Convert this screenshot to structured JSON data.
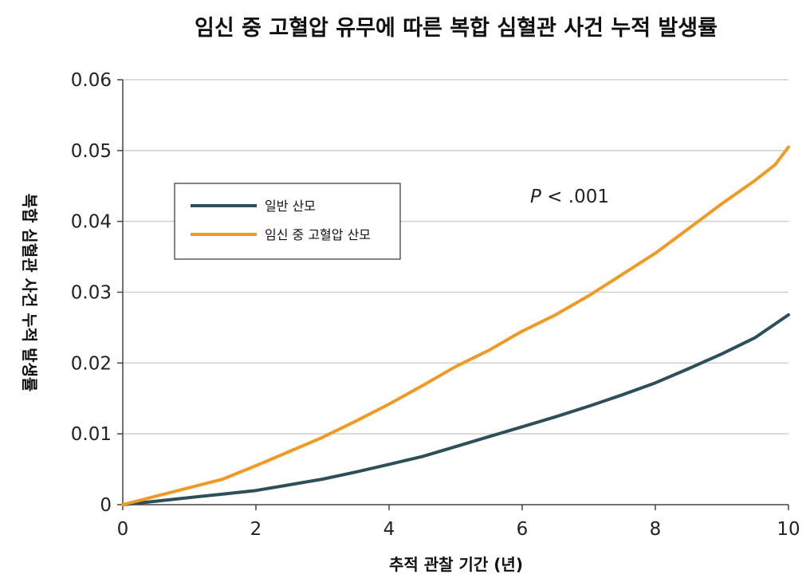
{
  "chart_data": {
    "type": "line",
    "title": "임신 중 고혈압 유무에 따른 복합 심혈관 사건 누적 발생률",
    "xlabel": "추적 관찰 기간 (년)",
    "ylabel": "복합 심혈관 사건 누적 발생률",
    "xlim": [
      0,
      10
    ],
    "ylim": [
      0,
      0.06
    ],
    "xticks": [
      0,
      2,
      4,
      6,
      8,
      10
    ],
    "xtick_labels": [
      "0",
      "2",
      "4",
      "6",
      "8",
      "10"
    ],
    "yticks": [
      0,
      0.01,
      0.02,
      0.03,
      0.04,
      0.05,
      0.06
    ],
    "ytick_labels": [
      "0",
      "0.01",
      "0.02",
      "0.03",
      "0.04",
      "0.05",
      "0.06"
    ],
    "grid": true,
    "legend_position": "upper-left",
    "annotation": {
      "italic": "P",
      "rest": " < .001"
    },
    "series": [
      {
        "name": "일반 산모",
        "color": "#2d4f59",
        "x": [
          0,
          0.5,
          1,
          1.5,
          2,
          2.5,
          3,
          3.5,
          4,
          4.5,
          5,
          5.5,
          6,
          6.5,
          7,
          7.5,
          8,
          8.5,
          9,
          9.5,
          10
        ],
        "y": [
          0,
          0.0005,
          0.001,
          0.0015,
          0.002,
          0.0028,
          0.0036,
          0.0046,
          0.0057,
          0.0068,
          0.0082,
          0.0096,
          0.011,
          0.0124,
          0.0139,
          0.0155,
          0.0172,
          0.0192,
          0.0213,
          0.0236,
          0.0268
        ]
      },
      {
        "name": "임신 중 고혈압 산모",
        "color": "#f09a26",
        "x": [
          0,
          0.5,
          1,
          1.5,
          2,
          2.5,
          3,
          3.5,
          4,
          4.5,
          5,
          5.5,
          6,
          6.5,
          7,
          7.5,
          8,
          8.5,
          9,
          9.5,
          9.8,
          10
        ],
        "y": [
          0,
          0.0012,
          0.0024,
          0.0036,
          0.0055,
          0.0075,
          0.0095,
          0.0118,
          0.0142,
          0.0168,
          0.0195,
          0.0218,
          0.0245,
          0.0268,
          0.0295,
          0.0325,
          0.0355,
          0.039,
          0.0425,
          0.0458,
          0.048,
          0.0505
        ]
      }
    ]
  }
}
